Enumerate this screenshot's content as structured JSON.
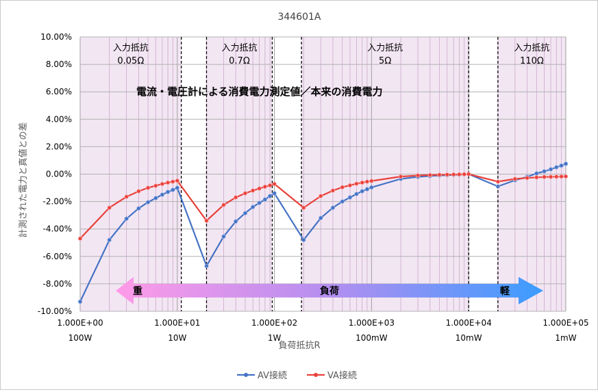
{
  "chart_data": {
    "type": "line",
    "title": "344601A",
    "ylabel": "計測された電力と真値との差",
    "xlabel": "負荷抵抗R",
    "x_scale": "log",
    "xlim": [
      1,
      100000
    ],
    "ylim": [
      -10,
      10
    ],
    "y_ticks": [
      "-10.00%",
      "-8.00%",
      "-6.00%",
      "-4.00%",
      "-2.00%",
      "0.00%",
      "2.00%",
      "4.00%",
      "6.00%",
      "8.00%",
      "10.00%"
    ],
    "x_ticks": [
      {
        "value": 1,
        "label": "1.000E+00",
        "power": "100W"
      },
      {
        "value": 10,
        "label": "1.000E+01",
        "power": "10W"
      },
      {
        "value": 100,
        "label": "1.000E+02",
        "power": "1W"
      },
      {
        "value": 1000,
        "label": "1.000E+03",
        "power": "100mW"
      },
      {
        "value": 10000,
        "label": "1.000E+04",
        "power": "10mW"
      },
      {
        "value": 100000,
        "label": "1.000E+05",
        "power": "1mW"
      }
    ],
    "annotation": "電流・電圧計による消費電力測定値／本来の消費電力",
    "ranges": [
      {
        "label": "入力抵抗",
        "value": "0.05Ω",
        "from": 1,
        "to": 11,
        "color": "#f3e6f3"
      },
      {
        "label": "入力抵抗",
        "value": "0.7Ω",
        "from": 20,
        "to": 95,
        "color": "#f3e6f3"
      },
      {
        "label": "入力抵抗",
        "value": "5Ω",
        "from": 190,
        "to": 10000,
        "color": "#f3e6f3"
      },
      {
        "label": "入力抵抗",
        "value": "110Ω",
        "from": 20000,
        "to": 100000,
        "color": "#f3e6f3"
      }
    ],
    "dividers": [
      11,
      20,
      95,
      190,
      10000,
      20000
    ],
    "load_arrow": {
      "label": "負荷",
      "left": "重",
      "right": "軽"
    },
    "series": [
      {
        "name": "AV接続",
        "color": "#4472c4",
        "x": [
          1,
          2,
          3,
          4,
          5,
          6,
          7,
          8,
          9,
          10,
          20,
          30,
          40,
          50,
          60,
          70,
          80,
          90,
          100,
          200,
          300,
          400,
          500,
          600,
          700,
          800,
          900,
          1000,
          2000,
          3000,
          4000,
          5000,
          6000,
          7000,
          8000,
          9000,
          10000,
          20000,
          30000,
          40000,
          50000,
          60000,
          70000,
          80000,
          90000,
          100000
        ],
        "y": [
          -9.3,
          -4.8,
          -3.25,
          -2.5,
          -2.05,
          -1.75,
          -1.5,
          -1.3,
          -1.15,
          -1.0,
          -6.7,
          -4.55,
          -3.45,
          -2.85,
          -2.4,
          -2.1,
          -1.85,
          -1.6,
          -1.4,
          -4.8,
          -3.2,
          -2.45,
          -2.0,
          -1.7,
          -1.45,
          -1.25,
          -1.1,
          -0.97,
          -0.35,
          -0.2,
          -0.14,
          -0.1,
          -0.08,
          -0.06,
          -0.04,
          -0.02,
          0.0,
          -0.9,
          -0.45,
          -0.2,
          0.05,
          0.2,
          0.35,
          0.5,
          0.62,
          0.75
        ]
      },
      {
        "name": "VA接続",
        "color": "#e8413a",
        "x": [
          1,
          2,
          3,
          4,
          5,
          6,
          7,
          8,
          9,
          10,
          20,
          30,
          40,
          50,
          60,
          70,
          80,
          90,
          100,
          200,
          300,
          400,
          500,
          600,
          700,
          800,
          900,
          1000,
          2000,
          3000,
          4000,
          5000,
          6000,
          7000,
          8000,
          9000,
          10000,
          20000,
          30000,
          40000,
          50000,
          60000,
          70000,
          80000,
          90000,
          100000
        ],
        "y": [
          -4.7,
          -2.45,
          -1.65,
          -1.25,
          -1.0,
          -0.85,
          -0.72,
          -0.62,
          -0.55,
          -0.48,
          -3.4,
          -2.25,
          -1.7,
          -1.4,
          -1.2,
          -1.05,
          -0.92,
          -0.82,
          -0.72,
          -2.45,
          -1.6,
          -1.2,
          -0.96,
          -0.82,
          -0.7,
          -0.62,
          -0.55,
          -0.5,
          -0.18,
          -0.1,
          -0.07,
          -0.05,
          -0.04,
          -0.03,
          -0.02,
          -0.01,
          0.0,
          -0.55,
          -0.35,
          -0.28,
          -0.24,
          -0.21,
          -0.2,
          -0.19,
          -0.18,
          -0.17
        ]
      }
    ],
    "legend_position": "bottom"
  }
}
